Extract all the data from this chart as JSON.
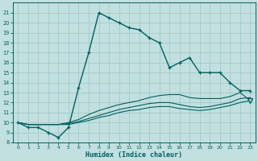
{
  "xlabel": "Humidex (Indice chaleur)",
  "bg_color": "#c2e0e0",
  "grid_color": "#a8cccc",
  "line_color": "#006060",
  "xlim": [
    -0.5,
    23.5
  ],
  "ylim": [
    8,
    22
  ],
  "xticks": [
    0,
    1,
    2,
    3,
    4,
    5,
    6,
    7,
    8,
    9,
    10,
    11,
    12,
    13,
    14,
    15,
    16,
    17,
    18,
    19,
    20,
    21,
    22,
    23
  ],
  "yticks": [
    8,
    9,
    10,
    11,
    12,
    13,
    14,
    15,
    16,
    17,
    18,
    19,
    20,
    21
  ],
  "main_line": [
    10,
    9.5,
    9.5,
    9.0,
    8.5,
    9.5,
    13.5,
    17.0,
    21.0,
    20.5,
    20.0,
    19.5,
    19.3,
    18.5,
    18.0,
    15.5,
    16.0,
    16.5,
    15.0,
    15.0,
    15.0,
    14.0,
    13.2,
    13.2
  ],
  "line2": [
    10.0,
    9.8,
    9.8,
    9.8,
    9.8,
    10.0,
    10.3,
    10.8,
    11.2,
    11.5,
    11.8,
    12.0,
    12.2,
    12.5,
    12.7,
    12.8,
    12.8,
    12.5,
    12.4,
    12.4,
    12.4,
    12.6,
    13.0,
    12.2
  ],
  "line3": [
    10.0,
    9.8,
    9.8,
    9.8,
    9.8,
    9.9,
    10.1,
    10.4,
    10.7,
    11.0,
    11.3,
    11.5,
    11.7,
    11.9,
    12.0,
    12.0,
    11.8,
    11.6,
    11.5,
    11.6,
    11.8,
    12.0,
    12.4,
    12.5
  ],
  "line4": [
    10.0,
    9.8,
    9.8,
    9.8,
    9.8,
    9.8,
    10.0,
    10.2,
    10.5,
    10.7,
    11.0,
    11.2,
    11.3,
    11.5,
    11.6,
    11.6,
    11.4,
    11.3,
    11.2,
    11.3,
    11.5,
    11.7,
    12.0,
    12.2
  ],
  "marker_main_x": [
    0,
    1,
    2,
    3,
    4,
    5,
    6,
    7,
    8,
    9,
    10,
    11,
    12,
    13,
    14,
    15,
    16,
    17,
    18,
    19,
    20,
    21,
    22,
    23
  ],
  "triangle_x": 23,
  "triangle_y": 12.2
}
